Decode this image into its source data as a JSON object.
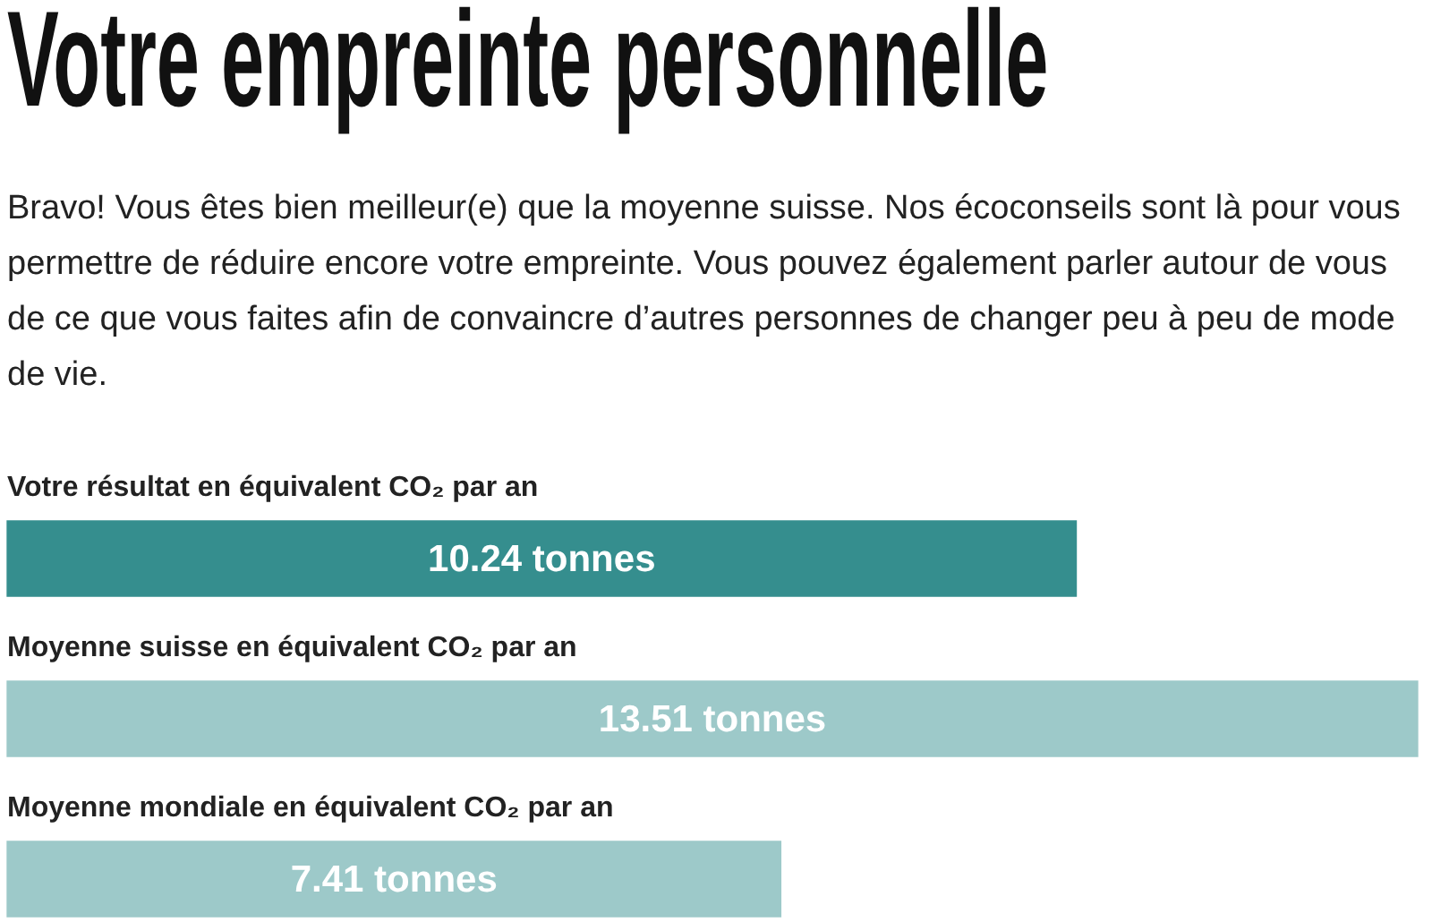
{
  "chart_data": {
    "type": "bar",
    "orientation": "horizontal",
    "title": "Votre empreinte personnelle",
    "subtitle": "Bravo! Vous êtes bien meilleur(e) que la moyenne suisse. Nos écoconseils sont là pour vous permettre de réduire encore votre empreinte. Vous pouvez également parler autour de vous de ce que vous faites afin de convaincre d’autres personnes de changer peu à peu de mode de vie.",
    "categories": [
      "Votre résultat en équivalent CO₂ par an",
      "Moyenne suisse en équivalent CO₂ par an",
      "Moyenne mondiale en équivalent CO₂ par an"
    ],
    "values": [
      10.24,
      13.51,
      7.41
    ],
    "colors": [
      "#358e8e",
      "#9dc9c9",
      "#9dc9c9"
    ],
    "value_labels": [
      "10.24 tonnes",
      "13.51 tonnes",
      "7.41 tonnes"
    ],
    "tick_labels": "y"
  }
}
